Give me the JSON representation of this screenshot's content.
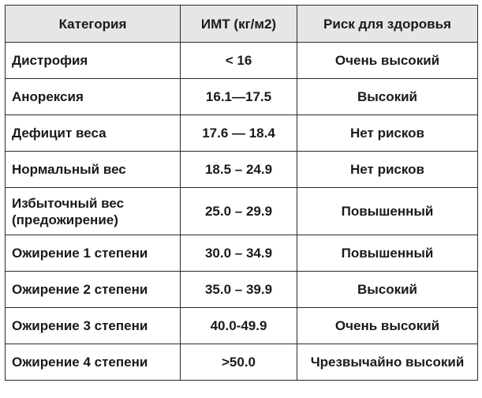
{
  "table": {
    "headers": {
      "category": "Категория",
      "bmi": "ИМТ (кг/м2)",
      "risk": "Риск для здоровья"
    },
    "rows": [
      {
        "category": "Дистрофия",
        "bmi": "< 16",
        "risk": "Очень высокий"
      },
      {
        "category": "Анорексия",
        "bmi": "16.1—17.5",
        "risk": "Высокий"
      },
      {
        "category": "Дефицит веса",
        "bmi": "17.6 — 18.4",
        "risk": "Нет рисков"
      },
      {
        "category": "Нормальный вес",
        "bmi": "18.5 – 24.9",
        "risk": "Нет рисков"
      },
      {
        "category_line1": "Избыточный вес",
        "category_line2": "(предожирение)",
        "bmi": "25.0 – 29.9",
        "risk": "Повышенный"
      },
      {
        "category": "Ожирение 1 степени",
        "bmi": "30.0 – 34.9",
        "risk": "Повышенный"
      },
      {
        "category": "Ожирение 2 степени",
        "bmi": "35.0 – 39.9",
        "risk": "Высокий"
      },
      {
        "category": "Ожирение 3 степени",
        "bmi": "40.0-49.9",
        "risk": "Очень высокий"
      },
      {
        "category": "Ожирение 4 степени",
        "bmi": ">50.0",
        "risk": "Чрезвычайно высокий"
      }
    ]
  }
}
